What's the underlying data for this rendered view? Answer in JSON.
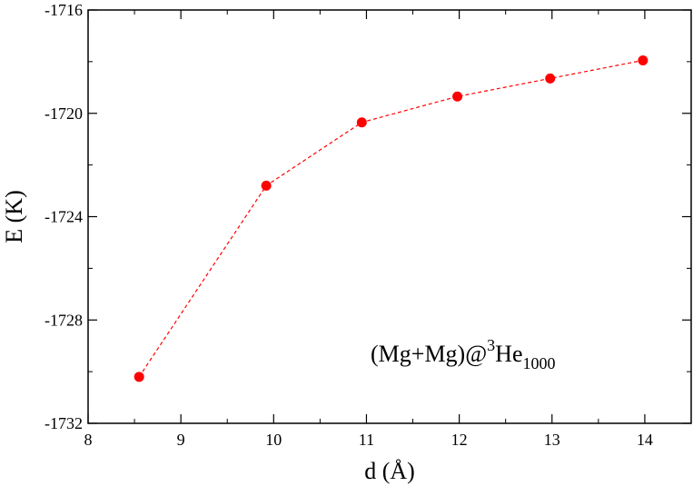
{
  "chart_data": {
    "type": "line",
    "title": "",
    "xlabel": "d (Å)",
    "ylabel": "E (K)",
    "xlim": [
      8,
      14.5
    ],
    "ylim": [
      -1732,
      -1716
    ],
    "x_ticks": [
      8,
      9,
      10,
      11,
      12,
      13,
      14
    ],
    "y_ticks": [
      -1732,
      -1728,
      -1724,
      -1720,
      -1716
    ],
    "grid": false,
    "series": [
      {
        "x": [
          8.55,
          9.92,
          10.95,
          11.98,
          12.98,
          13.98
        ],
        "y": [
          -1730.2,
          -1722.8,
          -1720.35,
          -1719.35,
          -1718.65,
          -1717.95
        ],
        "color": "#ff0000",
        "line_style": "dashed",
        "marker": "circle"
      }
    ],
    "annotation": {
      "main": "(Mg+Mg)@",
      "sup": "3",
      "element": "He",
      "sub": "1000"
    }
  }
}
